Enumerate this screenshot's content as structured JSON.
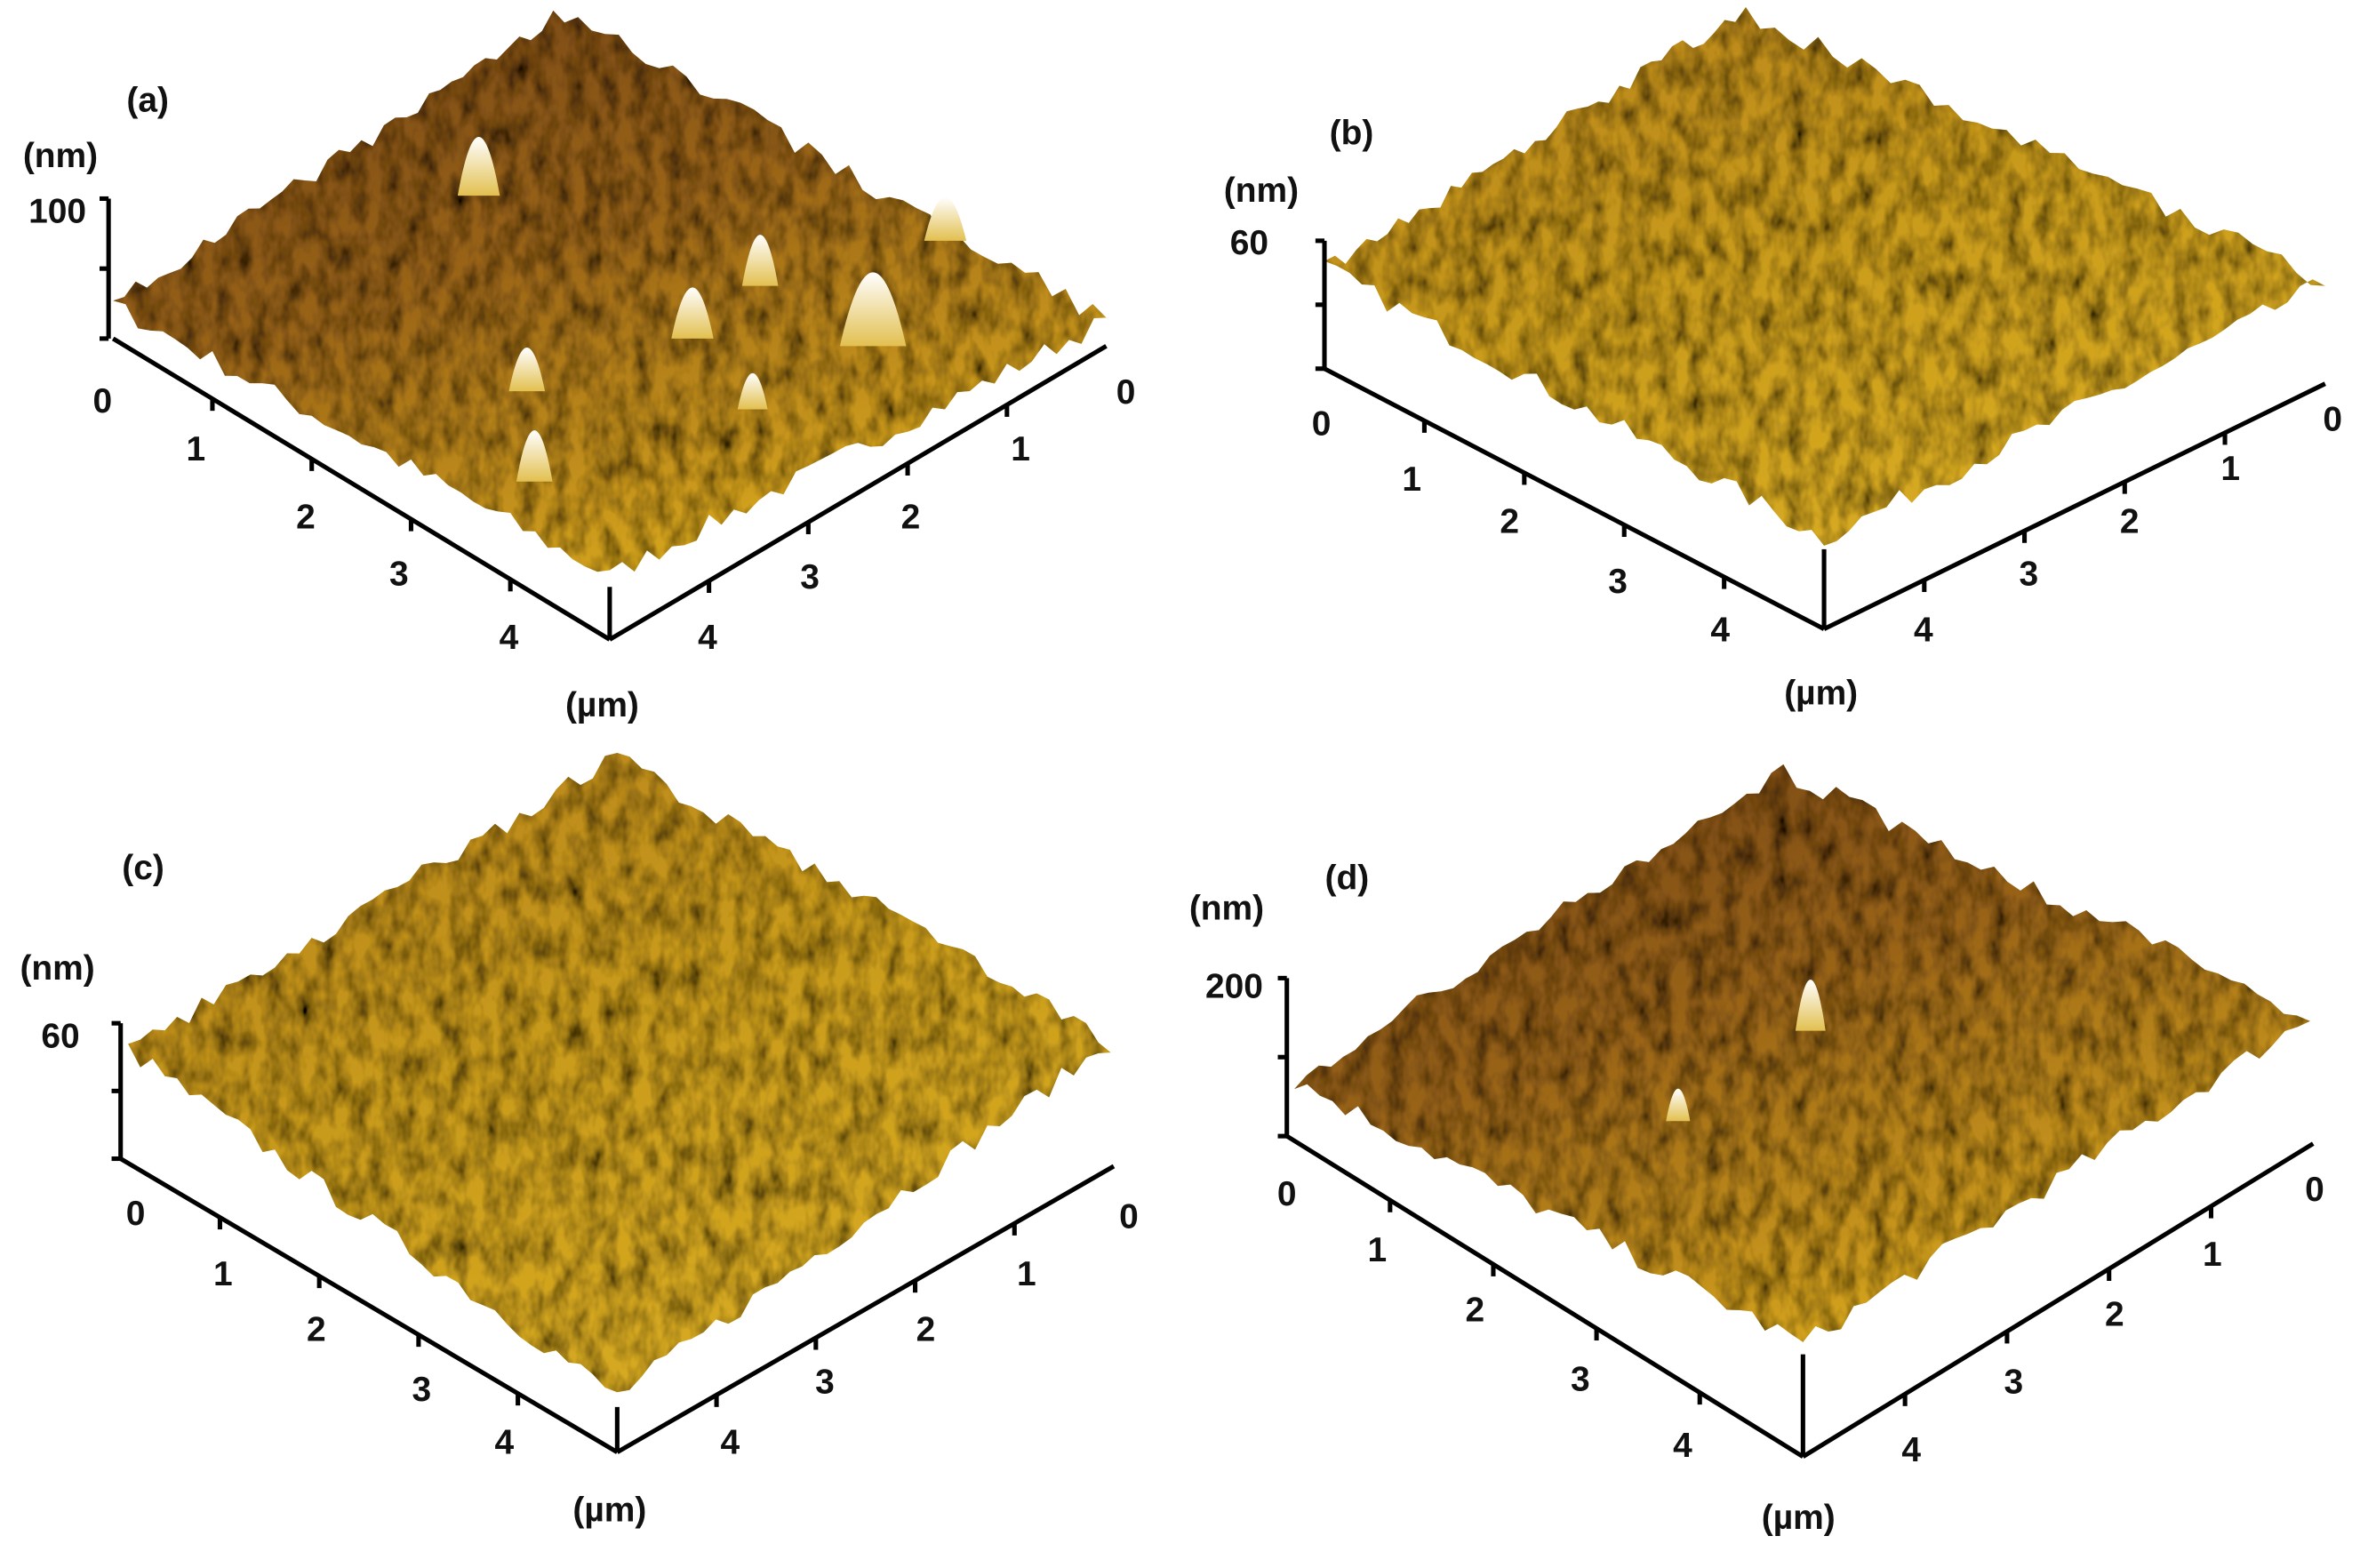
{
  "panels": [
    {
      "label": "(a)",
      "z_unit": "(nm)",
      "z_ticks": [
        100
      ],
      "x_ticks": [
        0,
        1,
        2,
        3,
        4
      ],
      "y_ticks": [
        0,
        1,
        2,
        3,
        4
      ],
      "xy_unit": "(µm)"
    },
    {
      "label": "(b)",
      "z_unit": "(nm)",
      "z_ticks": [
        60
      ],
      "x_ticks": [
        0,
        1,
        2,
        3,
        4
      ],
      "y_ticks": [
        0,
        1,
        2,
        3,
        4
      ],
      "xy_unit": "(µm)"
    },
    {
      "label": "(c)",
      "z_unit": "(nm)",
      "z_ticks": [
        60
      ],
      "x_ticks": [
        0,
        1,
        2,
        3,
        4
      ],
      "y_ticks": [
        0,
        1,
        2,
        3,
        4
      ],
      "xy_unit": "(µm)"
    },
    {
      "label": "(d)",
      "z_unit": "(nm)",
      "z_ticks": [
        200
      ],
      "x_ticks": [
        0,
        1,
        2,
        3,
        4
      ],
      "y_ticks": [
        0,
        1,
        2,
        3,
        4
      ],
      "xy_unit": "(µm)"
    }
  ]
}
